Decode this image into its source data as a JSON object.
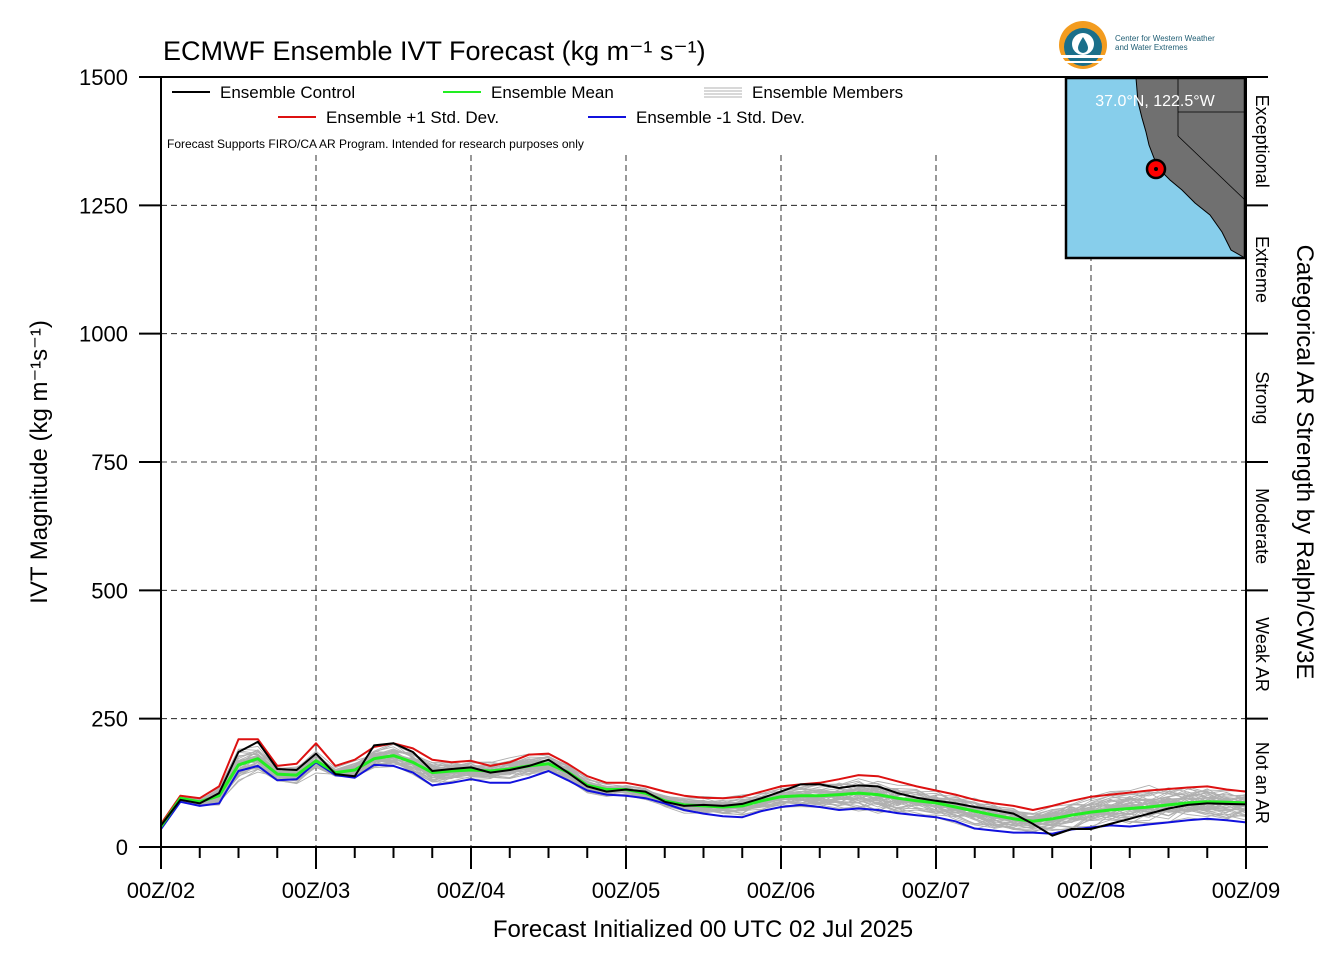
{
  "title": "ECMWF Ensemble IVT Forecast (kg m⁻¹ s⁻¹)",
  "xlabel": "Forecast Initialized 00 UTC 02 Jul 2025",
  "ylabel": "IVT Magnitude (kg m⁻¹s⁻¹)",
  "right_axis_title": "Categorical AR Strength by Ralph/CW3E",
  "note": "Forecast Supports FIRO/CA AR Program. Intended for research purposes only",
  "logo": {
    "line1": "Center for Western Weather",
    "line2": "and Water Extremes"
  },
  "inset": {
    "label": "37.0°N, 122.5°W",
    "ocean_color": "#87ceeb",
    "land_color": "#707070",
    "marker_color": "#ff0000"
  },
  "colors": {
    "control": "#000000",
    "mean": "#22ee22",
    "plus_std": "#dd1111",
    "minus_std": "#1111dd",
    "members": "#b0b0b0"
  },
  "legend": {
    "control": "Ensemble Control",
    "mean": "Ensemble Mean",
    "members": "Ensemble Members",
    "plus_std": "Ensemble +1 Std. Dev.",
    "minus_std": "Ensemble -1 Std. Dev."
  },
  "categories": [
    {
      "label": "Exceptional",
      "range": [
        1250,
        1500
      ]
    },
    {
      "label": "Extreme",
      "range": [
        1000,
        1250
      ]
    },
    {
      "label": "Strong",
      "range": [
        750,
        1000
      ]
    },
    {
      "label": "Moderate",
      "range": [
        500,
        750
      ]
    },
    {
      "label": "Weak AR",
      "range": [
        250,
        500
      ]
    },
    {
      "label": "Not an AR",
      "range": [
        0,
        250
      ]
    }
  ],
  "chart_data": {
    "type": "line",
    "title": "ECMWF Ensemble IVT Forecast (kg m⁻¹ s⁻¹)",
    "xlabel": "Forecast Initialized 00 UTC 02 Jul 2025",
    "ylabel": "IVT Magnitude (kg m⁻¹s⁻¹)",
    "ylim": [
      0,
      1500
    ],
    "yticks": [
      0,
      250,
      500,
      750,
      1000,
      1250,
      1500
    ],
    "xlim": [
      0,
      168
    ],
    "xticks": [
      {
        "hour": 0,
        "label": "00Z/02"
      },
      {
        "hour": 24,
        "label": "00Z/03"
      },
      {
        "hour": 48,
        "label": "00Z/04"
      },
      {
        "hour": 72,
        "label": "00Z/05"
      },
      {
        "hour": 96,
        "label": "00Z/06"
      },
      {
        "hour": 120,
        "label": "00Z/07"
      },
      {
        "hour": 144,
        "label": "00Z/08"
      },
      {
        "hour": 168,
        "label": "00Z/09"
      }
    ],
    "x": [
      0,
      3,
      6,
      9,
      12,
      15,
      18,
      21,
      24,
      27,
      30,
      33,
      36,
      39,
      42,
      45,
      48,
      51,
      54,
      57,
      60,
      63,
      66,
      69,
      72,
      75,
      78,
      81,
      84,
      87,
      90,
      93,
      96,
      99,
      102,
      105,
      108,
      111,
      114,
      117,
      120,
      123,
      126,
      129,
      132,
      135,
      138,
      141,
      144,
      147,
      150,
      153,
      156,
      159,
      162,
      165,
      168
    ],
    "grid": true,
    "legend_position": "top",
    "series": [
      {
        "name": "Ensemble Control",
        "color": "#000000",
        "values": [
          42,
          92,
          85,
          105,
          185,
          205,
          152,
          150,
          182,
          142,
          138,
          198,
          202,
          185,
          148,
          152,
          155,
          145,
          150,
          158,
          170,
          145,
          118,
          108,
          112,
          108,
          88,
          80,
          82,
          80,
          84,
          95,
          108,
          122,
          122,
          115,
          120,
          118,
          105,
          96,
          90,
          85,
          78,
          72,
          65,
          45,
          22,
          35,
          35,
          45,
          55,
          65,
          75,
          82,
          85,
          84,
          83
        ]
      },
      {
        "name": "Ensemble Mean",
        "color": "#22ee22",
        "values": [
          40,
          95,
          88,
          100,
          160,
          172,
          142,
          140,
          168,
          145,
          150,
          172,
          178,
          165,
          145,
          148,
          150,
          148,
          152,
          158,
          162,
          146,
          120,
          112,
          112,
          105,
          90,
          82,
          80,
          78,
          80,
          90,
          98,
          100,
          100,
          102,
          105,
          102,
          95,
          90,
          86,
          78,
          70,
          62,
          55,
          50,
          55,
          62,
          68,
          72,
          75,
          78,
          82,
          86,
          88,
          87,
          86
        ]
      },
      {
        "name": "Ensemble +1 Std. Dev.",
        "color": "#dd1111",
        "values": [
          45,
          100,
          95,
          118,
          210,
          210,
          158,
          162,
          202,
          158,
          170,
          195,
          202,
          192,
          170,
          165,
          168,
          158,
          165,
          180,
          182,
          162,
          138,
          125,
          125,
          118,
          108,
          100,
          96,
          95,
          98,
          108,
          118,
          122,
          125,
          132,
          140,
          138,
          128,
          118,
          110,
          102,
          92,
          85,
          80,
          72,
          80,
          90,
          98,
          102,
          106,
          110,
          113,
          116,
          118,
          112,
          108
        ]
      },
      {
        "name": "Ensemble -1 Std. Dev.",
        "color": "#1111dd",
        "values": [
          35,
          88,
          80,
          85,
          148,
          158,
          130,
          132,
          165,
          140,
          135,
          160,
          158,
          145,
          120,
          125,
          132,
          125,
          125,
          135,
          148,
          130,
          110,
          102,
          100,
          95,
          85,
          72,
          65,
          60,
          58,
          70,
          78,
          82,
          78,
          72,
          75,
          72,
          66,
          62,
          58,
          50,
          36,
          32,
          28,
          28,
          26,
          34,
          38,
          42,
          40,
          44,
          48,
          52,
          55,
          52,
          48
        ]
      }
    ]
  }
}
